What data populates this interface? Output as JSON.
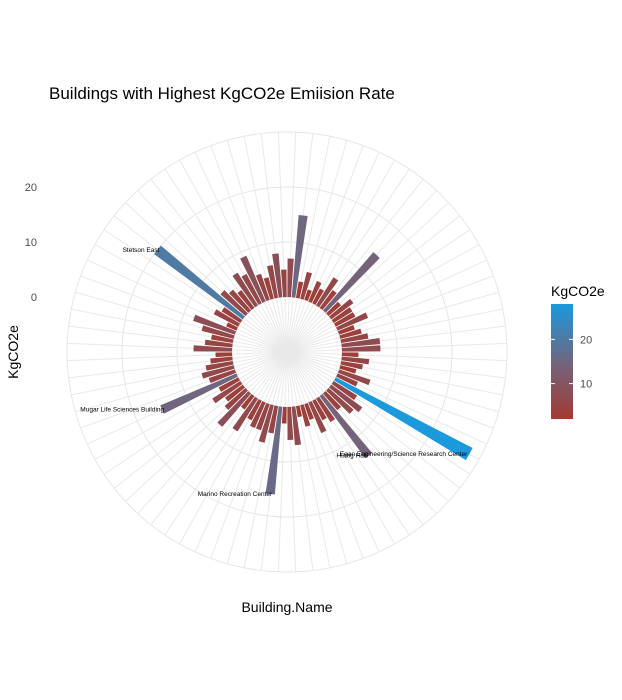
{
  "chart_data": {
    "type": "bar",
    "coord": "polar",
    "title": "Buildings with Highest KgCO2e Emiision Rate",
    "xlabel": "Building.Name",
    "ylabel": "KgCO2e",
    "ylim": [
      -10,
      30
    ],
    "y_ticks": [
      0,
      10,
      20
    ],
    "n_bars": 80,
    "grid": true,
    "values": [
      7,
      15,
      3,
      5,
      2,
      4,
      3,
      6,
      4,
      14,
      3,
      5,
      4,
      4,
      6,
      3,
      4,
      5,
      7,
      7,
      3,
      5,
      4,
      3,
      6,
      4,
      28,
      5,
      7,
      6,
      4,
      14,
      5,
      4,
      6,
      3,
      4,
      2,
      7,
      6,
      3,
      16,
      5,
      7,
      5,
      5,
      4,
      7,
      3,
      8,
      5,
      4,
      6,
      4,
      15,
      5,
      6,
      5,
      4,
      3,
      7,
      5,
      4,
      6,
      8,
      2,
      5,
      4,
      20,
      6,
      5,
      4,
      7,
      6,
      9,
      5,
      4,
      6,
      8,
      5
    ],
    "labelled_bars": [
      {
        "index": 26,
        "label": "Egan Engineering/Science Research Center"
      },
      {
        "index": 31,
        "label": "Hurtig Hall"
      },
      {
        "index": 41,
        "label": "Marino Recreation Center"
      },
      {
        "index": 54,
        "label": "Mugar Life Sciences Building"
      },
      {
        "index": 68,
        "label": "Stetson East"
      }
    ],
    "legend": {
      "title": "KgCO2e",
      "position": "right",
      "ticks": [
        10,
        20
      ],
      "range": [
        2,
        28
      ],
      "color_low": "#a33a32",
      "color_high": "#1a99dd"
    }
  }
}
